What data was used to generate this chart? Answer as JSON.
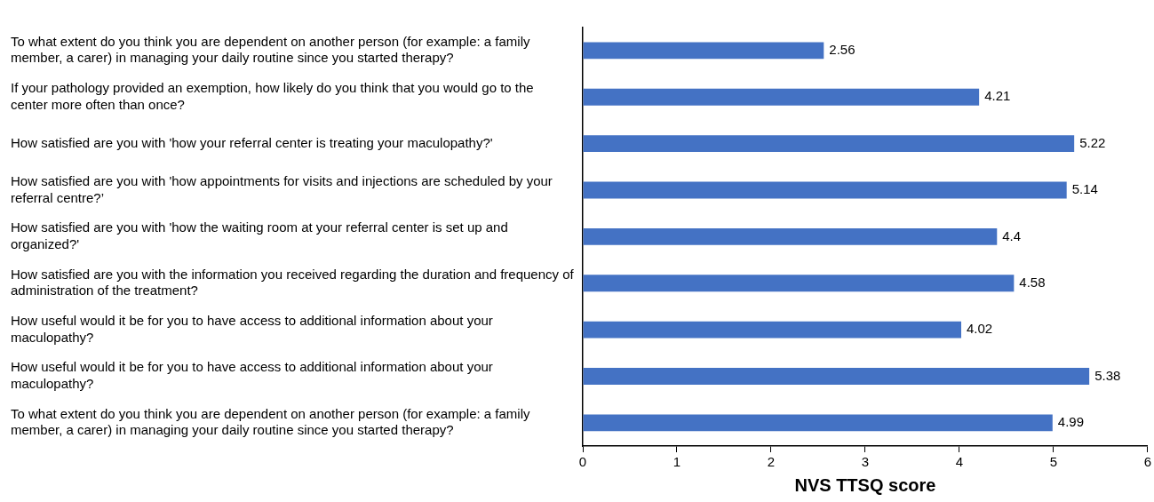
{
  "chart_data": {
    "type": "bar",
    "orientation": "horizontal",
    "categories": [
      "To what extent do you think you are dependent on another person (for example: a family member, a carer) in managing your daily routine since you started therapy?",
      "If your pathology provided an exemption, how likely do you think that you would go to the center more often than once?",
      "How satisfied are you with 'how your referral center is treating your maculopathy?'",
      "How satisfied are you with 'how appointments for visits and injections are scheduled by your referral centre?’",
      "How satisfied are you with 'how the waiting room at your referral center is set up and organized?'",
      "How satisfied are you with the information you received regarding the duration and frequency of administration of the treatment?",
      "How useful would it be for you to have access to additional information about your maculopathy?",
      "How useful would it be for you to have access to additional information about your maculopathy?",
      "To what extent do you think you are dependent on another person (for example: a family member, a carer) in managing your daily routine since you started therapy?"
    ],
    "values": [
      2.56,
      4.21,
      5.22,
      5.14,
      4.4,
      4.58,
      4.02,
      5.38,
      4.99
    ],
    "color": "#4472c4",
    "xlim": [
      0,
      6
    ],
    "xticks": [
      0,
      1,
      2,
      3,
      4,
      5,
      6
    ],
    "xlabel": "NVS TTSQ score",
    "data_labels": true,
    "grid": false,
    "legend": false
  }
}
